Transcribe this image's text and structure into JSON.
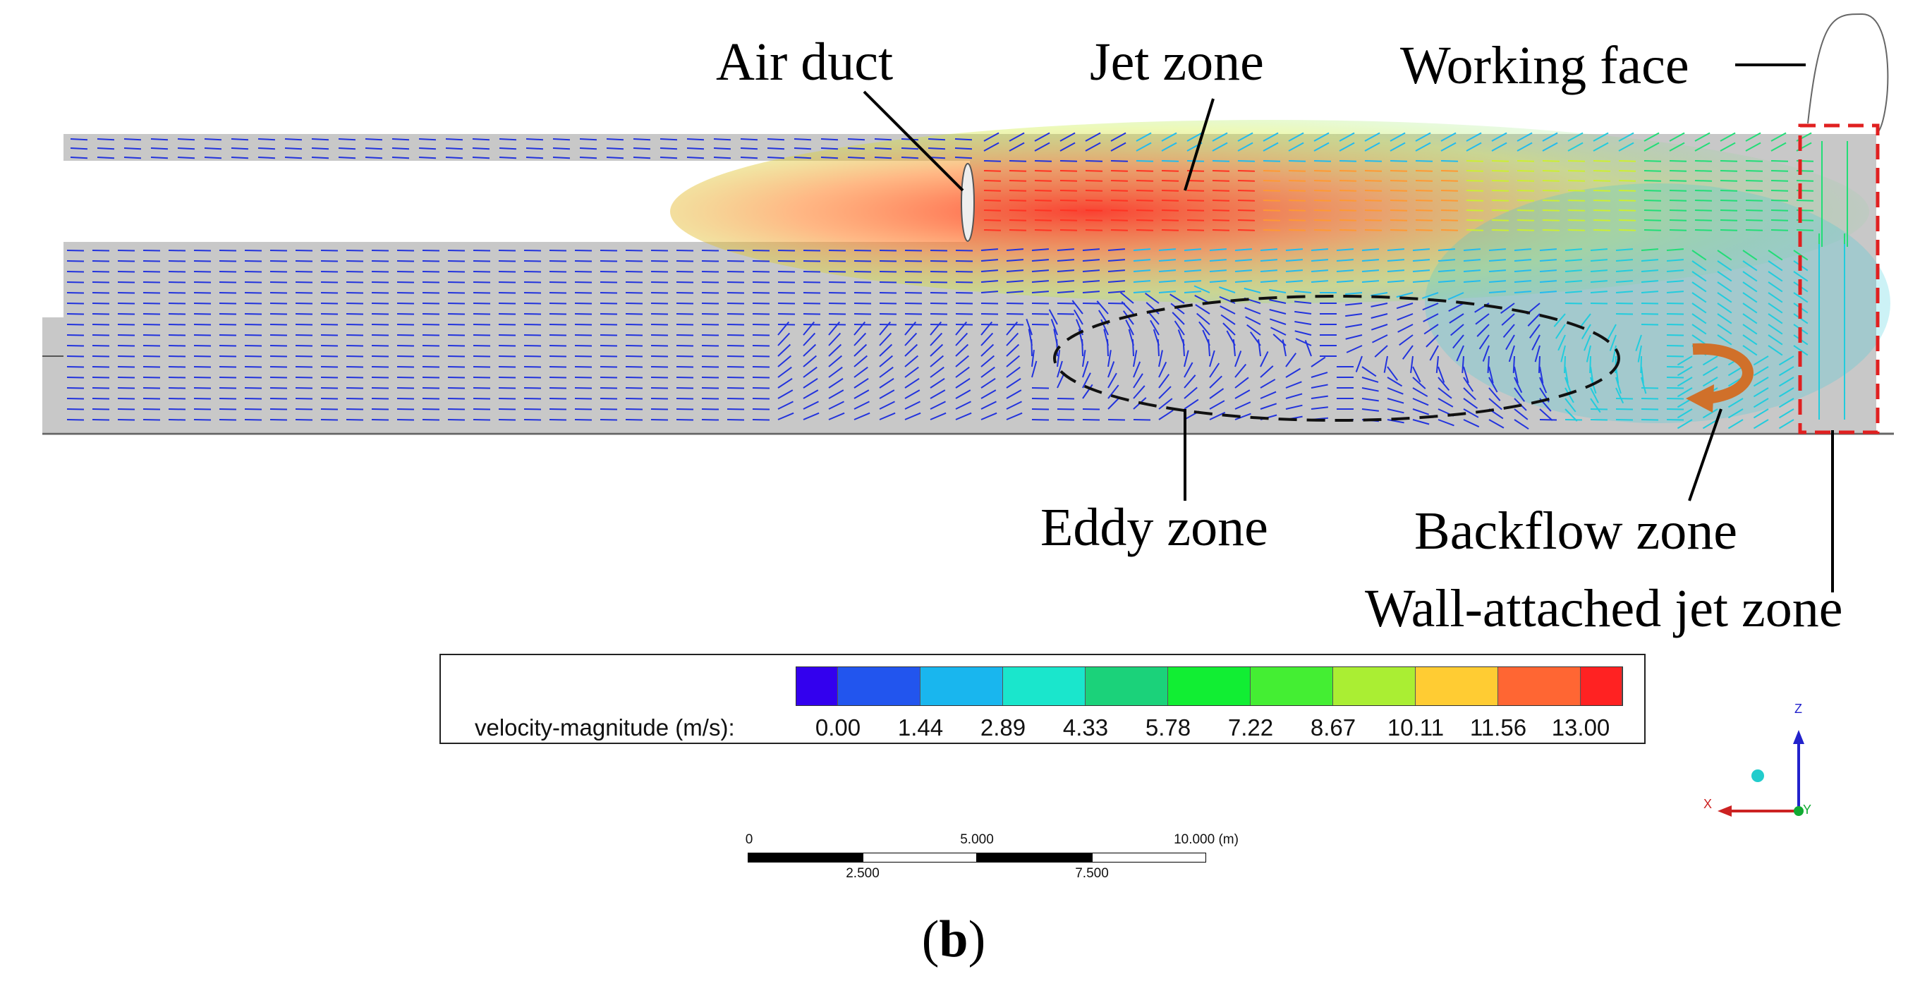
{
  "annotations": {
    "air_duct": "Air duct",
    "jet_zone": "Jet zone",
    "working_face": "Working face",
    "eddy_zone": "Eddy zone",
    "backflow_zone": "Backflow zone",
    "wall_attached_jet_zone": "Wall-attached jet zone"
  },
  "legend": {
    "label": "velocity-magnitude (m/s):",
    "ticks": [
      "0.00",
      "1.44",
      "2.89",
      "4.33",
      "5.78",
      "7.22",
      "8.67",
      "10.11",
      "11.56",
      "13.00"
    ],
    "colors": [
      "#3300ee",
      "#2255ee",
      "#19b6ee",
      "#1ae6cc",
      "#1bd27a",
      "#11ee33",
      "#44ee33",
      "#aaee33",
      "#ffcc33",
      "#ff6633",
      "#ff2222"
    ]
  },
  "scale_bar": {
    "labels_top": [
      "0",
      "5.000",
      "10.000 (m)"
    ],
    "labels_bottom": [
      "2.500",
      "7.500"
    ]
  },
  "axes": {
    "z": "Z",
    "x": "X",
    "y": "Y"
  },
  "caption": {
    "open": "(",
    "letter": "b",
    "close": ")"
  }
}
